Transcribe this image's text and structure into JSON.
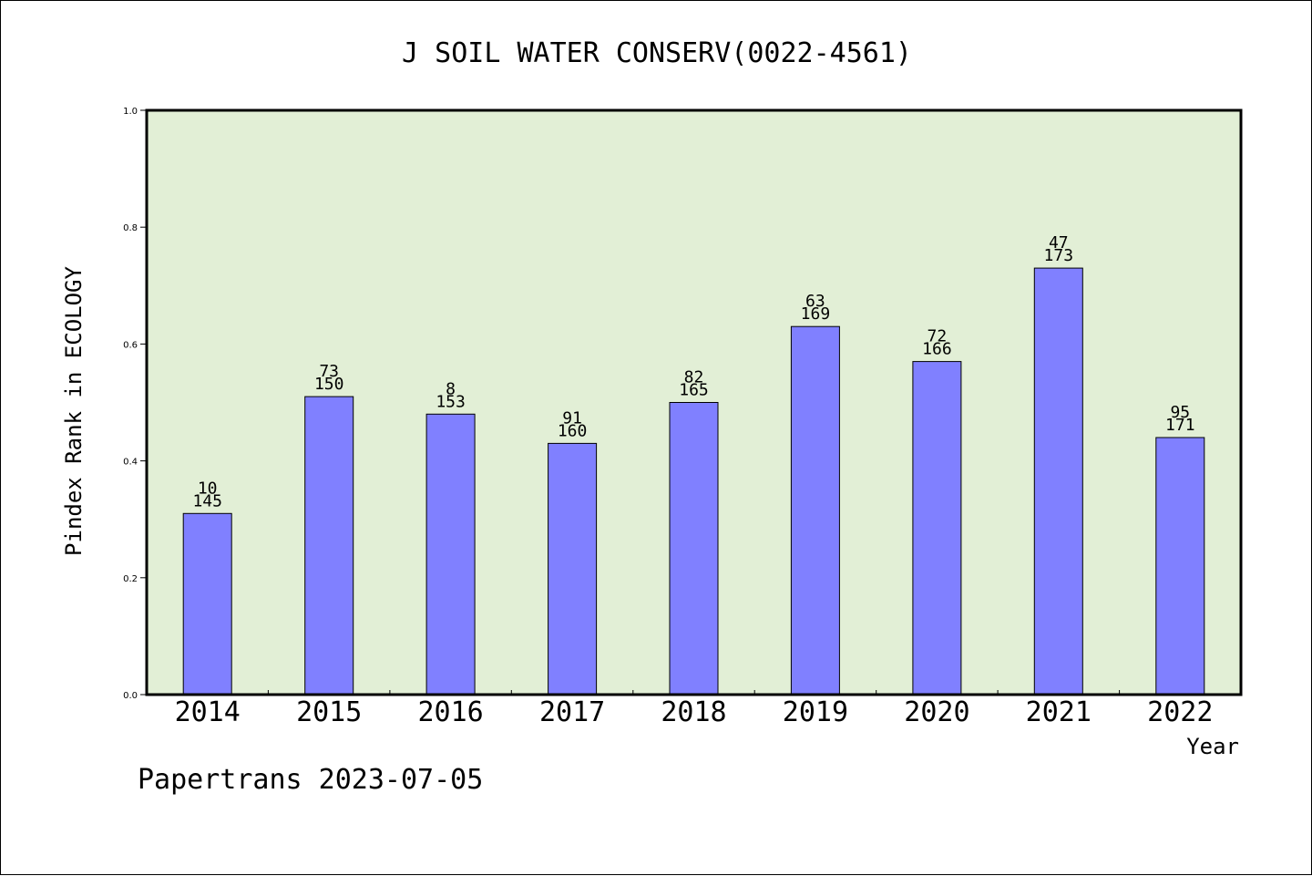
{
  "chart_data": {
    "type": "bar",
    "title": "J SOIL WATER CONSERV(0022-4561)",
    "xlabel": "Year",
    "ylabel": "Pindex Rank in ECOLOGY",
    "categories": [
      "2014",
      "2015",
      "2016",
      "2017",
      "2018",
      "2019",
      "2020",
      "2021",
      "2022"
    ],
    "values": [
      0.31,
      0.51,
      0.48,
      0.43,
      0.5,
      0.63,
      0.57,
      0.73,
      0.44
    ],
    "labels_top": [
      "10",
      "73",
      "8",
      "91",
      "82",
      "63",
      "72",
      "47",
      "95"
    ],
    "labels_bottom": [
      "145",
      "150",
      "153",
      "160",
      "165",
      "169",
      "166",
      "173",
      "171"
    ],
    "ylim": [
      0,
      1.0
    ],
    "yticks": [
      "0.0",
      "0.2",
      "0.4",
      "0.6",
      "0.8",
      "1.0"
    ],
    "grid": false,
    "colors": {
      "plot_background": "#e2efd6",
      "bar_fill": "#8080ff"
    }
  },
  "footer": {
    "source": "Papertrans 2023-07-05"
  }
}
